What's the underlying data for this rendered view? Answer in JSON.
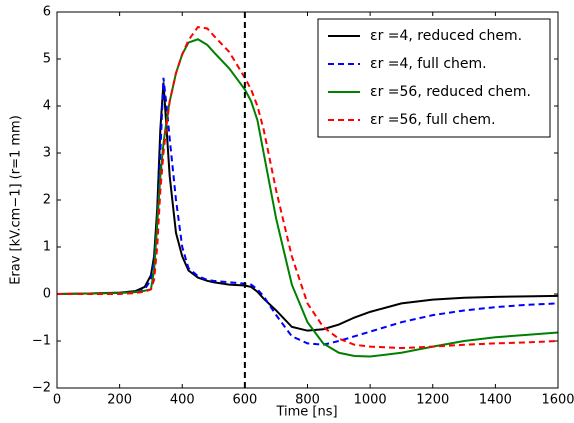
{
  "chart_data": {
    "type": "line",
    "xlabel": "Time [ns]",
    "ylabel": "Erav [kV.cm−1] (r=1 mm)",
    "x": [
      0,
      100,
      200,
      250,
      280,
      300,
      310,
      320,
      330,
      340,
      350,
      360,
      380,
      400,
      420,
      450,
      480,
      500,
      550,
      600,
      620,
      640,
      660,
      700,
      750,
      800,
      850,
      900,
      950,
      1000,
      1100,
      1200,
      1300,
      1400,
      1500,
      1600
    ],
    "series": [
      {
        "name": "εr =4, reduced chem.",
        "color": "#000000",
        "dash": "solid",
        "values": [
          0,
          0.01,
          0.03,
          0.06,
          0.15,
          0.4,
          0.8,
          1.8,
          3.5,
          4.5,
          3.5,
          2.5,
          1.3,
          0.8,
          0.5,
          0.35,
          0.28,
          0.25,
          0.2,
          0.18,
          0.15,
          0.05,
          -0.1,
          -0.35,
          -0.7,
          -0.78,
          -0.75,
          -0.65,
          -0.5,
          -0.38,
          -0.2,
          -0.12,
          -0.08,
          -0.06,
          -0.05,
          -0.04
        ]
      },
      {
        "name": "εr =4, full chem.",
        "color": "#0000ff",
        "dash": "dashed",
        "values": [
          0,
          0,
          0.02,
          0.04,
          0.1,
          0.3,
          0.7,
          1.5,
          3.0,
          4.6,
          4.0,
          3.3,
          2.0,
          1.0,
          0.55,
          0.38,
          0.3,
          0.28,
          0.25,
          0.22,
          0.2,
          0.1,
          -0.05,
          -0.45,
          -0.9,
          -1.05,
          -1.08,
          -1.0,
          -0.9,
          -0.8,
          -0.6,
          -0.45,
          -0.35,
          -0.28,
          -0.23,
          -0.2
        ]
      },
      {
        "name": "εr =56, reduced chem.",
        "color": "#008000",
        "dash": "solid",
        "values": [
          0,
          0.01,
          0.02,
          0.04,
          0.07,
          0.1,
          0.5,
          1.5,
          2.5,
          3.2,
          3.7,
          4.1,
          4.7,
          5.1,
          5.35,
          5.42,
          5.3,
          5.15,
          4.8,
          4.35,
          4.1,
          3.7,
          3.0,
          1.6,
          0.2,
          -0.6,
          -1.05,
          -1.25,
          -1.32,
          -1.33,
          -1.25,
          -1.12,
          -1.0,
          -0.92,
          -0.87,
          -0.82
        ]
      },
      {
        "name": "εr =56, full chem.",
        "color": "#ff0000",
        "dash": "dashed",
        "values": [
          0,
          0,
          0,
          0.02,
          0.05,
          0.1,
          0.3,
          1.0,
          2.2,
          3.0,
          3.6,
          4.1,
          4.7,
          5.1,
          5.4,
          5.68,
          5.65,
          5.5,
          5.15,
          4.6,
          4.35,
          4.0,
          3.5,
          2.2,
          0.8,
          -0.2,
          -0.7,
          -0.95,
          -1.08,
          -1.12,
          -1.15,
          -1.12,
          -1.08,
          -1.05,
          -1.03,
          -1.0
        ]
      }
    ],
    "vline_x": 600,
    "xlim": [
      0,
      1600
    ],
    "xticks": [
      0,
      200,
      400,
      600,
      800,
      1000,
      1200,
      1400,
      1600
    ],
    "ylim": [
      -2,
      6
    ],
    "yticks": [
      {
        "value": -2,
        "label": "−2"
      },
      {
        "value": -1,
        "label": "−1"
      },
      0,
      1,
      2,
      3,
      4,
      5,
      6
    ],
    "legend": "upper right"
  }
}
